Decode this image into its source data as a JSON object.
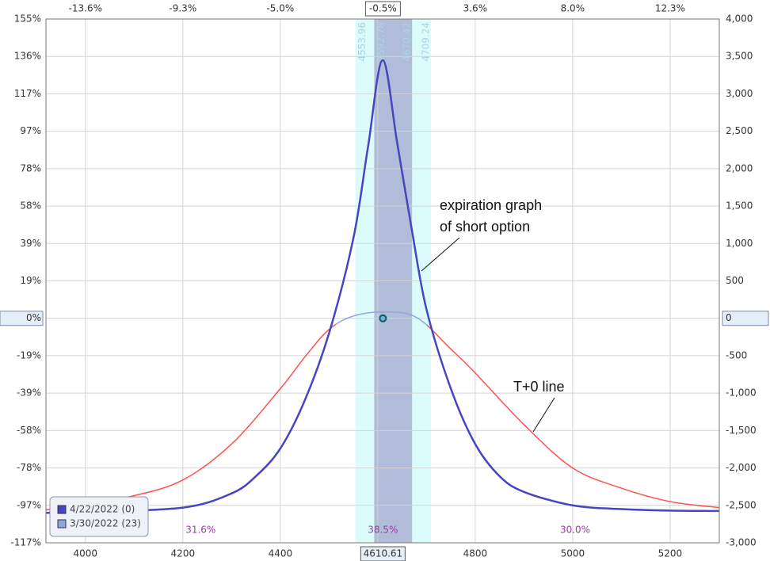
{
  "chart_data": {
    "type": "line",
    "xlim": [
      3919,
      5301
    ],
    "ylim": [
      -3000,
      4000
    ],
    "grid": true,
    "xticks": [
      4000,
      4200,
      4400,
      4600,
      4800,
      5000,
      5200
    ],
    "xticks_top": [
      {
        "value": 4000,
        "label": "-13.6%"
      },
      {
        "value": 4200,
        "label": "-9.3%"
      },
      {
        "value": 4400,
        "label": "-5.0%"
      },
      {
        "value": 4800,
        "label": "3.6%"
      },
      {
        "value": 5000,
        "label": "8.0%"
      },
      {
        "value": 5200,
        "label": "12.3%"
      }
    ],
    "yticks": [
      {
        "value": 4000,
        "label": "4,000"
      },
      {
        "value": 3500,
        "label": "3,500"
      },
      {
        "value": 3000,
        "label": "3,000"
      },
      {
        "value": 2500,
        "label": "2,500"
      },
      {
        "value": 2000,
        "label": "2,000"
      },
      {
        "value": 1500,
        "label": "1,500"
      },
      {
        "value": 1000,
        "label": "1,000"
      },
      500,
      0,
      -500,
      {
        "value": -1000,
        "label": "-1,000"
      },
      {
        "value": -1500,
        "label": "-1,500"
      },
      {
        "value": -2000,
        "label": "-2,000"
      },
      {
        "value": -2500,
        "label": "-2,500"
      },
      {
        "value": -3000,
        "label": "-3,000"
      }
    ],
    "yticks_left": [
      {
        "value": 4000,
        "label": "155%"
      },
      {
        "value": 3500,
        "label": "136%"
      },
      {
        "value": 3000,
        "label": "117%"
      },
      {
        "value": 2500,
        "label": "97%"
      },
      {
        "value": 2000,
        "label": "78%"
      },
      {
        "value": 1500,
        "label": "58%"
      },
      {
        "value": 1000,
        "label": "39%"
      },
      {
        "value": 500,
        "label": "19%"
      },
      {
        "value": 0,
        "label": "0%"
      },
      {
        "value": -500,
        "label": "-19%"
      },
      {
        "value": -1000,
        "label": "-39%"
      },
      {
        "value": -1500,
        "label": "-58%"
      },
      {
        "value": -2000,
        "label": "-78%"
      },
      {
        "value": -2500,
        "label": "-97%"
      },
      {
        "value": -3000,
        "label": "-117%"
      }
    ],
    "current_price": 4610.61,
    "current_change_label": "-0.5%",
    "bands": [
      {
        "lo": 4553.96,
        "hi": 4709.24,
        "color": "#dcfcfc"
      },
      {
        "lo": 4592.78,
        "hi": 4670.42,
        "color": "#b0bcd8"
      }
    ],
    "zone_probabilities": [
      31.6,
      38.5,
      30.0
    ],
    "zone_value_labels": [
      "31.6%",
      "38.5%",
      "30.0%"
    ],
    "series": [
      {
        "name": "4/22/2022 (0)",
        "color": "#4646c0",
        "x": [
          3919,
          4000,
          4200,
          4300,
          4350,
          4400,
          4450,
          4500,
          4550,
          4580,
          4610,
          4640,
          4670,
          4700,
          4750,
          4800,
          4850,
          4900,
          5000,
          5100,
          5200,
          5301
        ],
        "values": [
          -2600,
          -2590,
          -2530,
          -2340,
          -2110,
          -1740,
          -1100,
          -200,
          1070,
          2290,
          3450,
          2340,
          1180,
          120,
          -940,
          -1680,
          -2110,
          -2320,
          -2500,
          -2550,
          -2570,
          -2575
        ]
      },
      {
        "name": "3/30/2022 (23)",
        "color": "#8fa8dc",
        "outer_color": "#ff5050",
        "x": [
          3919,
          4000,
          4100,
          4200,
          4300,
          4400,
          4450,
          4500,
          4550,
          4615,
          4680,
          4750,
          4800,
          4900,
          5000,
          5100,
          5200,
          5301
        ],
        "values": [
          -2560,
          -2480,
          -2370,
          -2160,
          -1680,
          -940,
          -520,
          -150,
          30,
          85,
          10,
          -410,
          -730,
          -1420,
          -2000,
          -2270,
          -2450,
          -2530
        ]
      }
    ],
    "annotations": [
      {
        "lines": [
          "expiration graph",
          "of short option"
        ]
      },
      {
        "lines": [
          "T+0 line"
        ]
      }
    ]
  }
}
